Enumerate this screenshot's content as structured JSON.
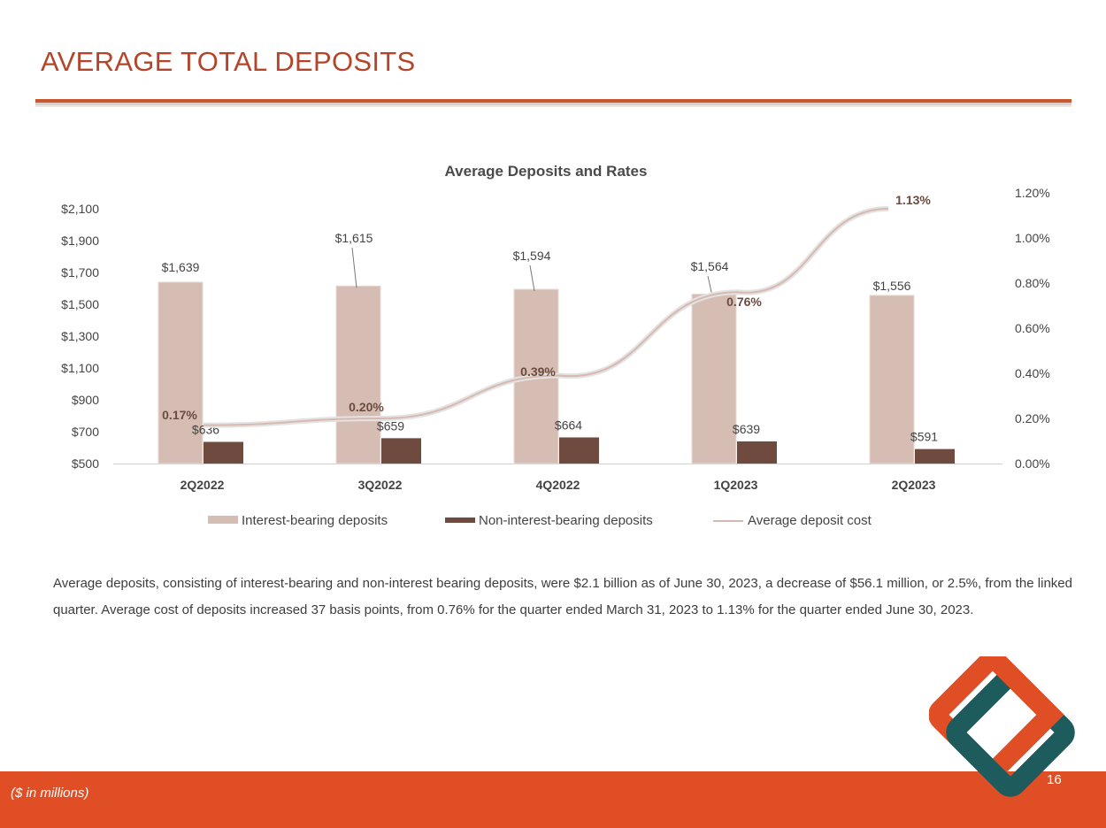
{
  "page": {
    "title": "AVERAGE TOTAL DEPOSITS",
    "summary": "Average deposits, consisting of interest-bearing and non-interest bearing deposits, were $2.1 billion as of June 30,  2023, a decrease of $56.1 million, or 2.5%, from the linked quarter. Average cost of deposits increased 37 basis points, from 0.76% for the quarter ended March 31, 2023 to 1.13% for the quarter ended June 30, 2023.",
    "footnote": "($ in millions)",
    "page_number": "16",
    "accent_color": "#e04e26",
    "title_color": "#b5452a",
    "logo_icon": "interlocking-diamond-logo"
  },
  "chart_data": {
    "type": "bar",
    "title": "Average Deposits and Rates",
    "categories": [
      "2Q2022",
      "3Q2022",
      "4Q2022",
      "1Q2023",
      "2Q2023"
    ],
    "series": [
      {
        "name": "Interest-bearing deposits",
        "type": "bar",
        "axis": "left",
        "color": "#d6bdb3",
        "values": [
          1639,
          1615,
          1594,
          1564,
          1556
        ],
        "labels": [
          "$1,639",
          "$1,615",
          "$1,594",
          "$1,564",
          "$1,556"
        ]
      },
      {
        "name": "Non-interest-bearing deposits",
        "type": "bar",
        "axis": "left",
        "color": "#6e4a3f",
        "values": [
          636,
          659,
          664,
          639,
          591
        ],
        "labels": [
          "$636",
          "$659",
          "$664",
          "$639",
          "$591"
        ]
      },
      {
        "name": "Average deposit cost",
        "type": "line",
        "axis": "right",
        "color": "#d8b9b0",
        "values": [
          0.17,
          0.2,
          0.39,
          0.76,
          1.13
        ],
        "labels": [
          "0.17%",
          "0.20%",
          "0.39%",
          "0.76%",
          "1.13%"
        ]
      }
    ],
    "y_left": {
      "min": 500,
      "max": 2100,
      "ticks": [
        500,
        700,
        900,
        1100,
        1300,
        1500,
        1700,
        1900,
        2100
      ],
      "tick_labels": [
        "$500",
        "$700",
        "$900",
        "$1,100",
        "$1,300",
        "$1,500",
        "$1,700",
        "$1,900",
        "$2,100"
      ]
    },
    "y_right": {
      "min": 0,
      "max": 1.2,
      "ticks": [
        0,
        0.2,
        0.4,
        0.6,
        0.8,
        1.0,
        1.2
      ],
      "tick_labels": [
        "0.00%",
        "0.20%",
        "0.40%",
        "0.60%",
        "0.80%",
        "1.00%",
        "1.20%"
      ]
    },
    "grid": false,
    "legend_position": "bottom"
  }
}
